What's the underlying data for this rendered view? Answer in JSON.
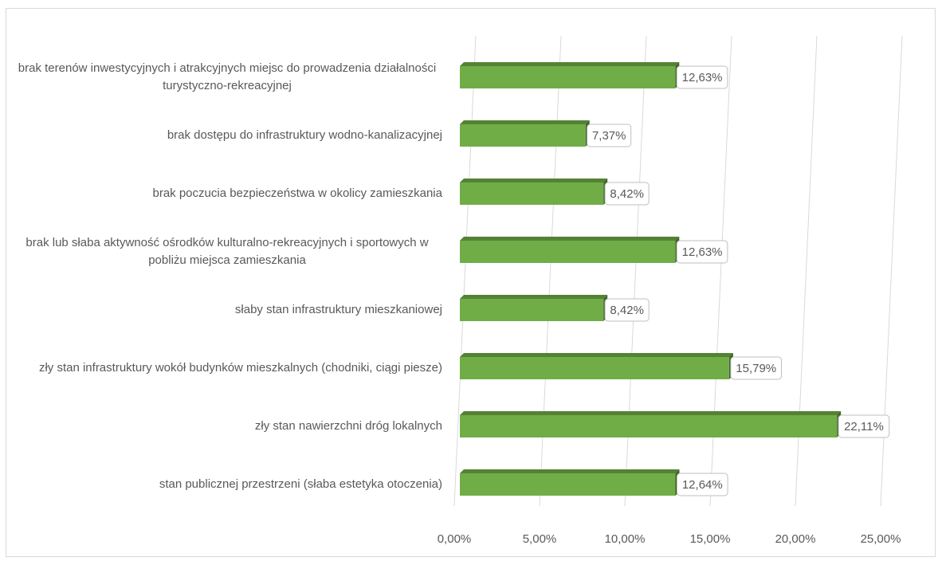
{
  "chart_data": {
    "type": "bar",
    "orientation": "horizontal",
    "categories": [
      "brak terenów inwestycyjnych i atrakcyjnych miejsc do prowadzenia działalności turystyczno-rekreacyjnej",
      "brak dostępu do infrastruktury wodno-kanalizacyjnej",
      "brak poczucia bezpieczeństwa w okolicy zamieszkania",
      "brak lub słaba aktywność ośrodków kulturalno-rekreacyjnych i sportowych w pobliżu miejsca zamieszkania",
      "słaby stan infrastruktury mieszkaniowej",
      "zły stan infrastruktury wokół budynków mieszkalnych (chodniki, ciągi piesze)",
      "zły stan nawierzchni dróg lokalnych",
      "stan publicznej przestrzeni (słaba estetyka otoczenia)"
    ],
    "values": [
      12.63,
      7.37,
      8.42,
      12.63,
      8.42,
      15.79,
      22.11,
      12.64
    ],
    "value_labels": [
      "12,63%",
      "7,37%",
      "8,42%",
      "12,63%",
      "8,42%",
      "15,79%",
      "22,11%",
      "12,64%"
    ],
    "color": "#70ad47",
    "xlim": [
      0,
      25
    ],
    "xticks": [
      {
        "value": 0,
        "label": "0,00%"
      },
      {
        "value": 5,
        "label": "5,00%"
      },
      {
        "value": 10,
        "label": "10,00%"
      },
      {
        "value": 15,
        "label": "15,00%"
      },
      {
        "value": 20,
        "label": "20,00%"
      },
      {
        "value": 25,
        "label": "25,00%"
      }
    ],
    "grid": true
  }
}
